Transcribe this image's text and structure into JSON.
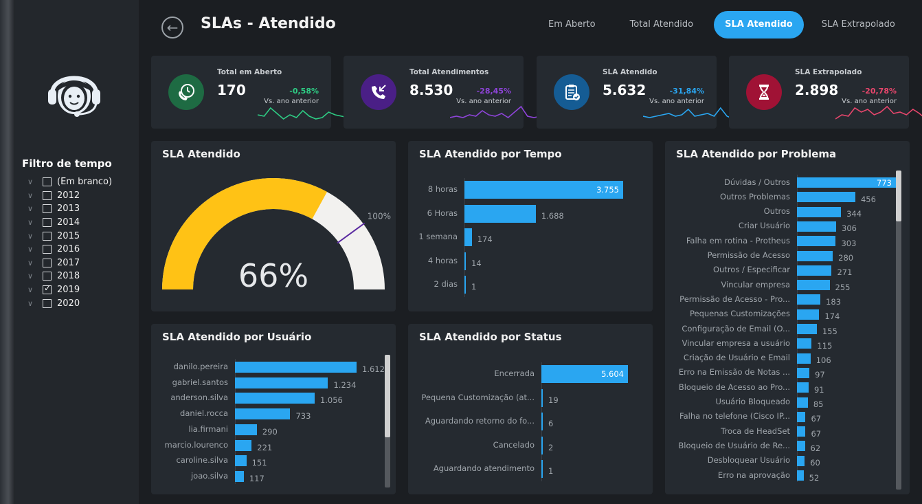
{
  "header": {
    "title": "SLAs - Atendido",
    "tabs": [
      {
        "label": "Em Aberto",
        "active": false
      },
      {
        "label": "Total Atendido",
        "active": false
      },
      {
        "label": "SLA Atendido",
        "active": true
      },
      {
        "label": "SLA Extrapolado",
        "active": false
      }
    ]
  },
  "sidebar": {
    "filter_title": "Filtro de tempo",
    "filters": [
      {
        "label": "(Em branco)",
        "checked": false
      },
      {
        "label": "2012",
        "checked": false
      },
      {
        "label": "2013",
        "checked": false
      },
      {
        "label": "2014",
        "checked": false
      },
      {
        "label": "2015",
        "checked": false
      },
      {
        "label": "2016",
        "checked": false
      },
      {
        "label": "2017",
        "checked": false
      },
      {
        "label": "2018",
        "checked": false
      },
      {
        "label": "2019",
        "checked": true
      },
      {
        "label": "2020",
        "checked": false
      }
    ]
  },
  "kpis": [
    {
      "label": "Total em Aberto",
      "value": "170",
      "delta": "-0,58%",
      "sub": "Vs. ano anterior",
      "color": "#2ecc84",
      "icon": "phone-clock-icon",
      "icon_bg": "#1e6b43"
    },
    {
      "label": "Total Atendimentos",
      "value": "8.530",
      "delta": "-28,45%",
      "sub": "Vs. ano anterior",
      "color": "#8e44d9",
      "icon": "incoming-call-icon",
      "icon_bg": "#4a1f86"
    },
    {
      "label": "SLA Atendido",
      "value": "5.632",
      "delta": "-31,84%",
      "sub": "Vs. ano anterior",
      "color": "#2aa6f1",
      "icon": "clipboard-check-icon",
      "icon_bg": "#155c94"
    },
    {
      "label": "SLA Extrapolado",
      "value": "2.898",
      "delta": "-20,78%",
      "sub": "Vs. ano anterior",
      "color": "#e8466c",
      "icon": "hourglass-icon",
      "icon_bg": "#a01235"
    }
  ],
  "gauge": {
    "title": "SLA Atendido",
    "value_label": "66%",
    "target_label": "100%",
    "fraction": 0.66,
    "target_fraction": 0.8,
    "fill_color": "#ffc215",
    "track_color": "#f2f1ef"
  },
  "chart_data": [
    {
      "type": "bar",
      "title": "SLA Atendido por Tempo",
      "categories": [
        "8 horas",
        "6 Horas",
        "1 semana",
        "4 horas",
        "2 dias"
      ],
      "values": [
        3755,
        1688,
        174,
        14,
        1
      ],
      "value_labels": [
        "3.755",
        "1.688",
        "174",
        "14",
        "1"
      ]
    },
    {
      "type": "bar",
      "title": "SLA Atendido por Problema",
      "categories": [
        "Dúvidas / Outros",
        "Outros Problemas",
        "Outros",
        "Criar Usuário",
        "Falha em rotina - Protheus",
        "Permissão de Acesso",
        "Outros / Especificar",
        "Vincular empresa",
        "Permissão de Acesso - Pro...",
        "Pequenas Customizações",
        "Configuração de Email (O...",
        "Vincular empresa a usuário",
        "Criação de Usuário e Email",
        "Erro na Emissão de Notas ...",
        "Bloqueio de Acesso ao Pro...",
        "Usuário Bloqueado",
        "Falha no telefone (Cisco IP...",
        "Troca de HeadSet",
        "Bloqueio de Usuário de Re...",
        "Desbloquear Usuário",
        "Erro na aprovação"
      ],
      "values": [
        773,
        456,
        344,
        306,
        303,
        280,
        271,
        255,
        183,
        174,
        155,
        115,
        106,
        97,
        91,
        85,
        67,
        67,
        62,
        60,
        52
      ],
      "value_labels": [
        "773",
        "456",
        "344",
        "306",
        "303",
        "280",
        "271",
        "255",
        "183",
        "174",
        "155",
        "115",
        "106",
        "97",
        "91",
        "85",
        "67",
        "67",
        "62",
        "60",
        "52"
      ]
    },
    {
      "type": "bar",
      "title": "SLA Atendido por Usuário",
      "categories": [
        "danilo.pereira",
        "gabriel.santos",
        "anderson.silva",
        "daniel.rocca",
        "lia.firmani",
        "marcio.lourenco",
        "caroline.silva",
        "joao.silva"
      ],
      "values": [
        1612,
        1234,
        1056,
        733,
        290,
        221,
        151,
        117
      ],
      "value_labels": [
        "1.612",
        "1.234",
        "1.056",
        "733",
        "290",
        "221",
        "151",
        "117"
      ]
    },
    {
      "type": "bar",
      "title": "SLA Atendido por Status",
      "categories": [
        "Encerrada",
        "Pequena Customização (at...",
        "Aguardando retorno do fo...",
        "Cancelado",
        "Aguardando atendimento"
      ],
      "values": [
        5604,
        19,
        6,
        2,
        1
      ],
      "value_labels": [
        "5.604",
        "19",
        "6",
        "2",
        "1"
      ]
    }
  ],
  "colors": {
    "bar": "#2aa6f1",
    "card": "#252a30",
    "background": "#1b1e22"
  }
}
